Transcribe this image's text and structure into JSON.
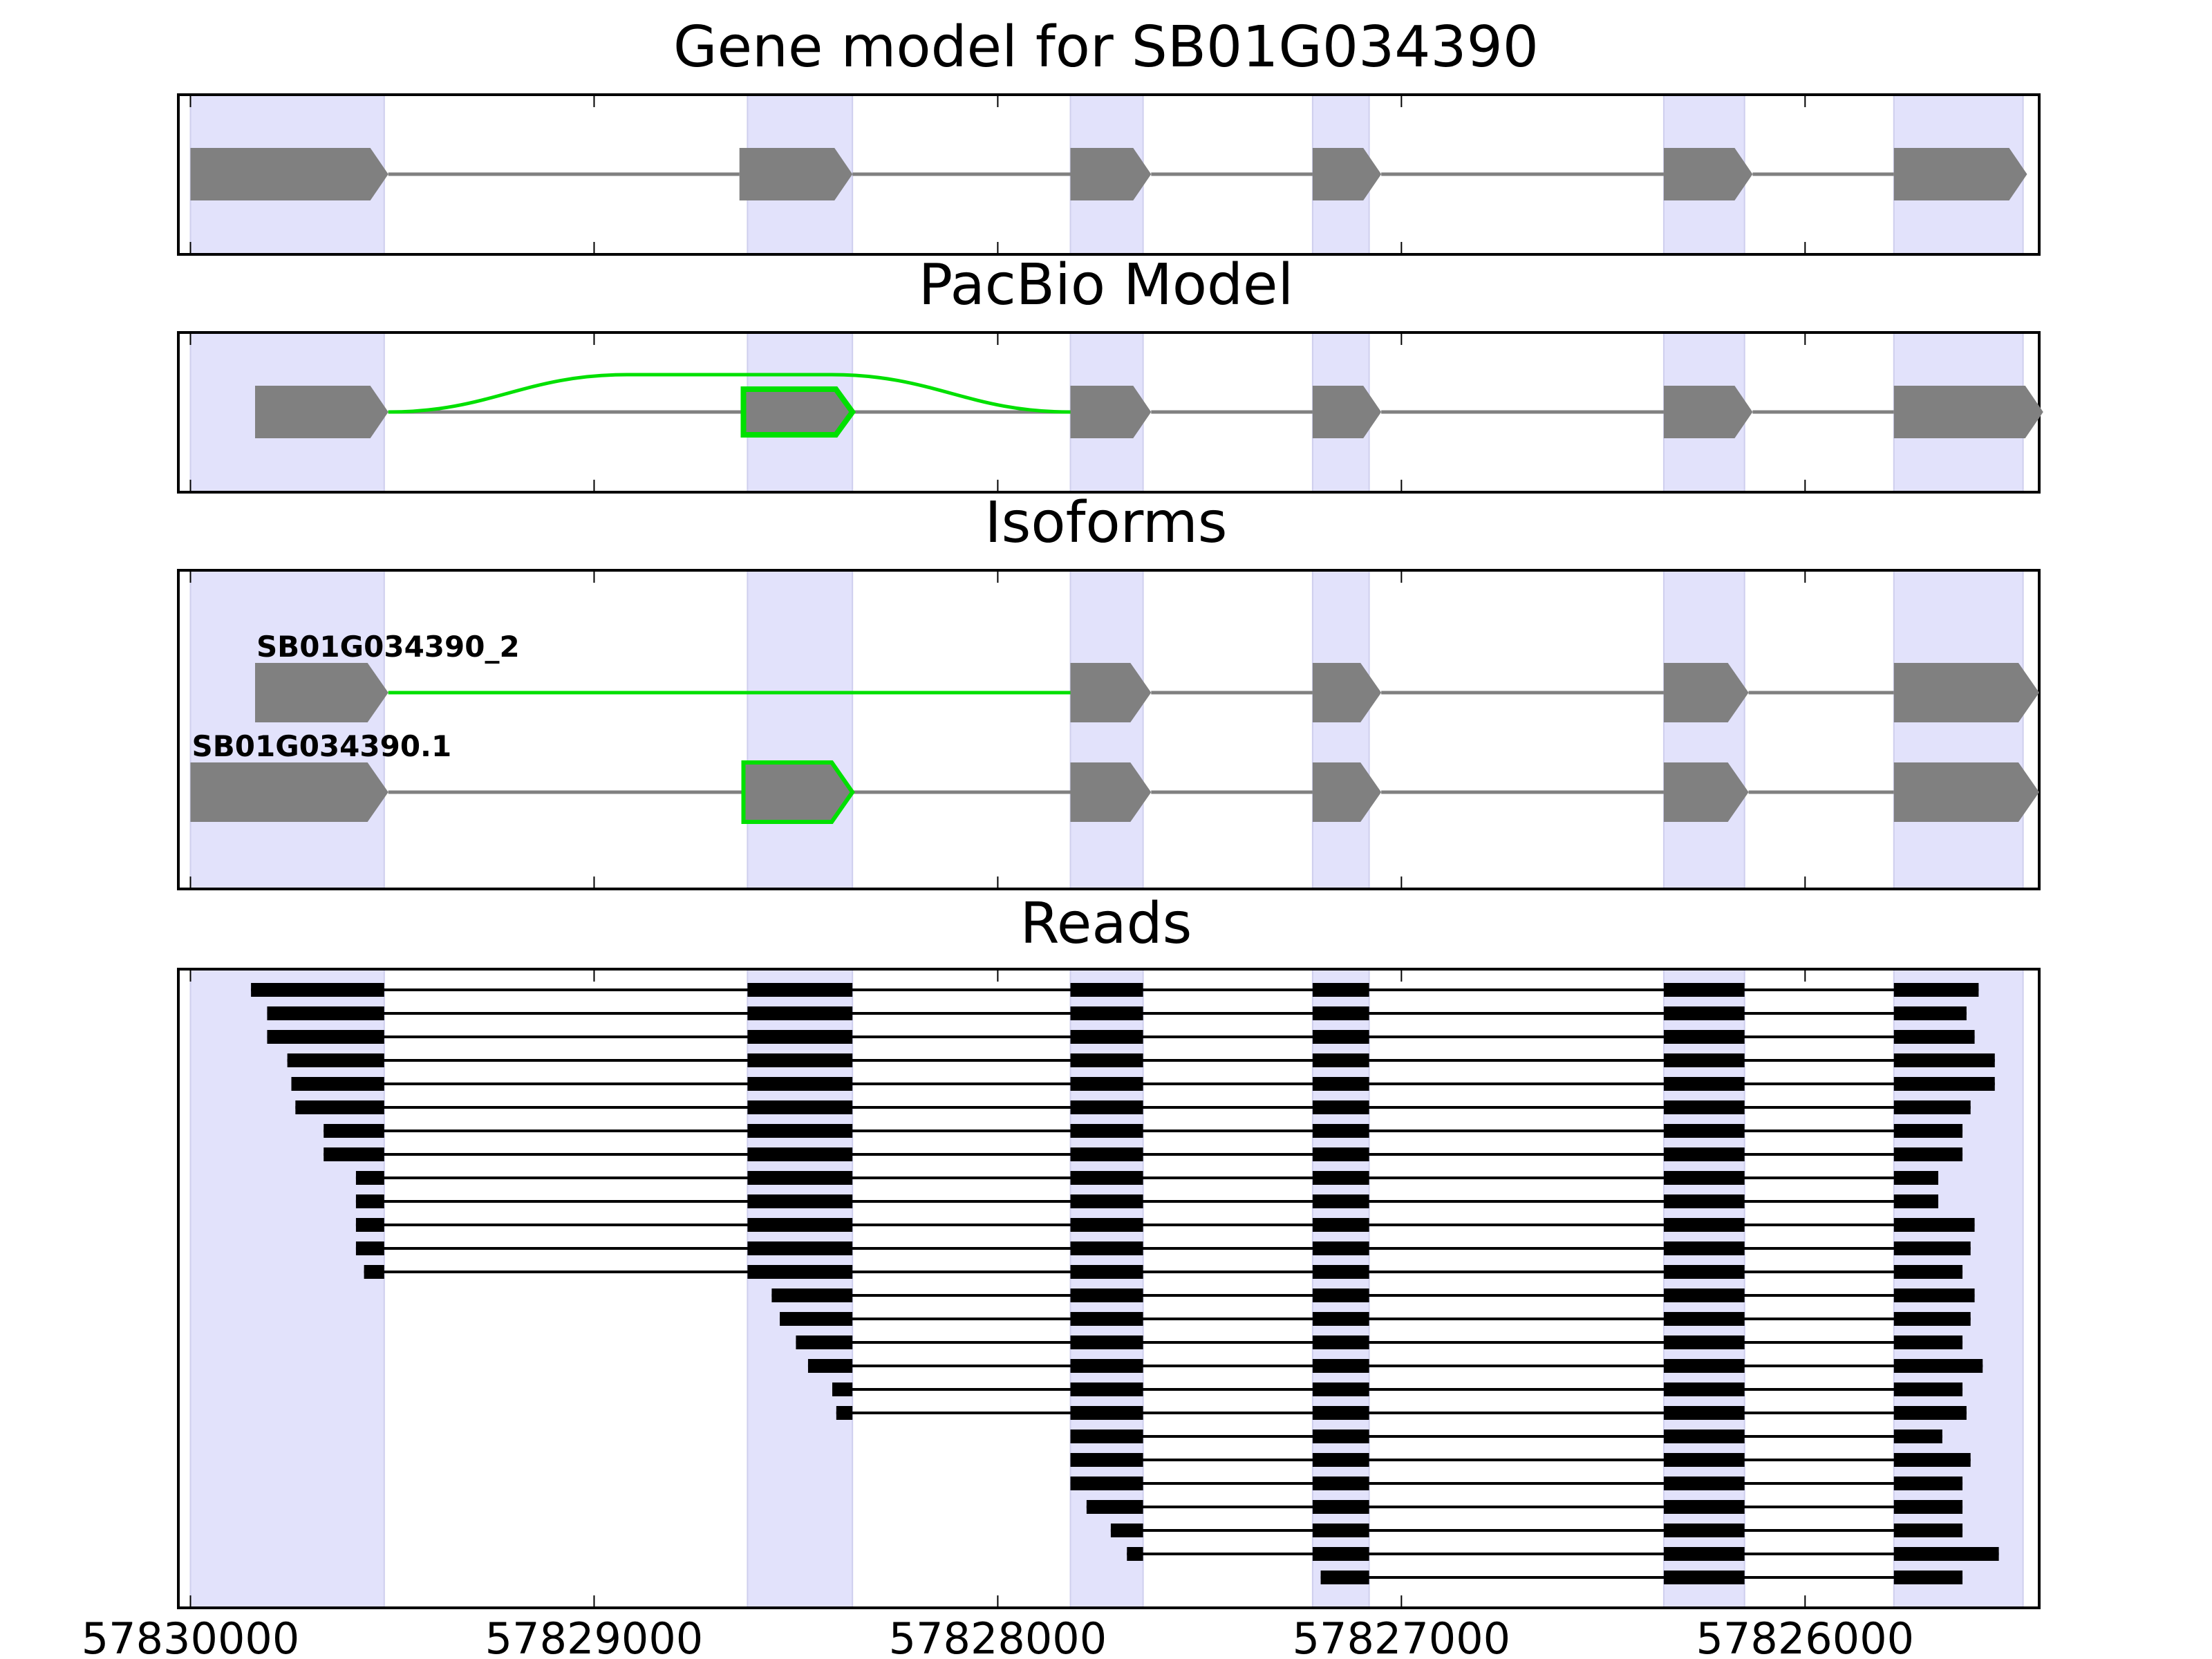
{
  "chart_data": {
    "type": "gene-model",
    "axis": {
      "direction": "descending",
      "xlim": [
        57830030,
        57825420
      ],
      "ticks": [
        57830000,
        57829000,
        57828000,
        57827000,
        57826000
      ],
      "tick_labels": [
        "57830000",
        "57829000",
        "57828000",
        "57827000",
        "57826000"
      ]
    },
    "exon_regions": [
      [
        57830000,
        57829520
      ],
      [
        57828620,
        57828360
      ],
      [
        57827820,
        57827640
      ],
      [
        57827220,
        57827080
      ],
      [
        57826350,
        57826150
      ],
      [
        57825780,
        57825460
      ]
    ],
    "colors": {
      "exon_shade": "#e2e2fb",
      "feature": "#808080",
      "alternative": "#00e000",
      "read": "#000000"
    },
    "panels": [
      {
        "title": "Gene model for SB01G034390",
        "key": "gene",
        "exons": [
          [
            57830000,
            57829510
          ],
          [
            57828640,
            57828360
          ],
          [
            57827820,
            57827620
          ],
          [
            57827220,
            57827050
          ],
          [
            57826350,
            57826130
          ],
          [
            57825780,
            57825450
          ]
        ]
      },
      {
        "title": "PacBio Model",
        "key": "pacbio",
        "exons": [
          [
            57829840,
            57829510
          ],
          [
            57827820,
            57827620
          ],
          [
            57827220,
            57827050
          ],
          [
            57826350,
            57826130
          ],
          [
            57825780,
            57825410
          ]
        ],
        "alt_exon": [
          57828630,
          57828360
        ],
        "alt_arc": [
          57829510,
          57827820
        ]
      },
      {
        "title": "Isoforms",
        "key": "isoforms",
        "isoforms": [
          {
            "label": "SB01G034390_2",
            "exons": [
              [
                57829840,
                57829510
              ],
              [
                57827820,
                57827620
              ],
              [
                57827220,
                57827050
              ],
              [
                57826350,
                57826140
              ],
              [
                57825780,
                57825420
              ]
            ],
            "green_intron": [
              57829510,
              57827820
            ]
          },
          {
            "label": "SB01G034390.1",
            "exons": [
              [
                57830000,
                57829510
              ],
              [
                57828630,
                57828360
              ],
              [
                57827820,
                57827620
              ],
              [
                57827220,
                57827050
              ],
              [
                57826350,
                57826140
              ],
              [
                57825780,
                57825420
              ]
            ],
            "alt_exon_index": 1
          }
        ]
      },
      {
        "title": "Reads",
        "key": "reads",
        "reads": [
          {
            "start": 57829850,
            "end": 57825570,
            "skip": false
          },
          {
            "start": 57829810,
            "end": 57825600,
            "skip": false
          },
          {
            "start": 57829810,
            "end": 57825580,
            "skip": false
          },
          {
            "start": 57829760,
            "end": 57825530,
            "skip": false
          },
          {
            "start": 57829750,
            "end": 57825530,
            "skip": false
          },
          {
            "start": 57829740,
            "end": 57825590,
            "skip": false
          },
          {
            "start": 57829670,
            "end": 57825610,
            "skip": false
          },
          {
            "start": 57829670,
            "end": 57825610,
            "skip": false
          },
          {
            "start": 57829590,
            "end": 57825670,
            "skip": false
          },
          {
            "start": 57829590,
            "end": 57825670,
            "skip": false
          },
          {
            "start": 57829590,
            "end": 57825580,
            "skip": false
          },
          {
            "start": 57829590,
            "end": 57825590,
            "skip": false
          },
          {
            "start": 57829570,
            "end": 57825610,
            "skip": false
          },
          {
            "start": 57828560,
            "end": 57825580,
            "skip": false
          },
          {
            "start": 57828540,
            "end": 57825590,
            "skip": false
          },
          {
            "start": 57828500,
            "end": 57825610,
            "skip": false
          },
          {
            "start": 57828470,
            "end": 57825560,
            "skip": false
          },
          {
            "start": 57828410,
            "end": 57825610,
            "skip": false
          },
          {
            "start": 57828400,
            "end": 57825600,
            "skip": false
          },
          {
            "start": 57827820,
            "end": 57825660,
            "skip": false
          },
          {
            "start": 57827820,
            "end": 57825590,
            "skip": false
          },
          {
            "start": 57827820,
            "end": 57825610,
            "skip": false
          },
          {
            "start": 57827780,
            "end": 57825610,
            "skip": false
          },
          {
            "start": 57827720,
            "end": 57825610,
            "skip": false
          },
          {
            "start": 57827680,
            "end": 57825520,
            "skip": false
          },
          {
            "start": 57827200,
            "end": 57825610,
            "skip": false
          }
        ]
      }
    ]
  }
}
